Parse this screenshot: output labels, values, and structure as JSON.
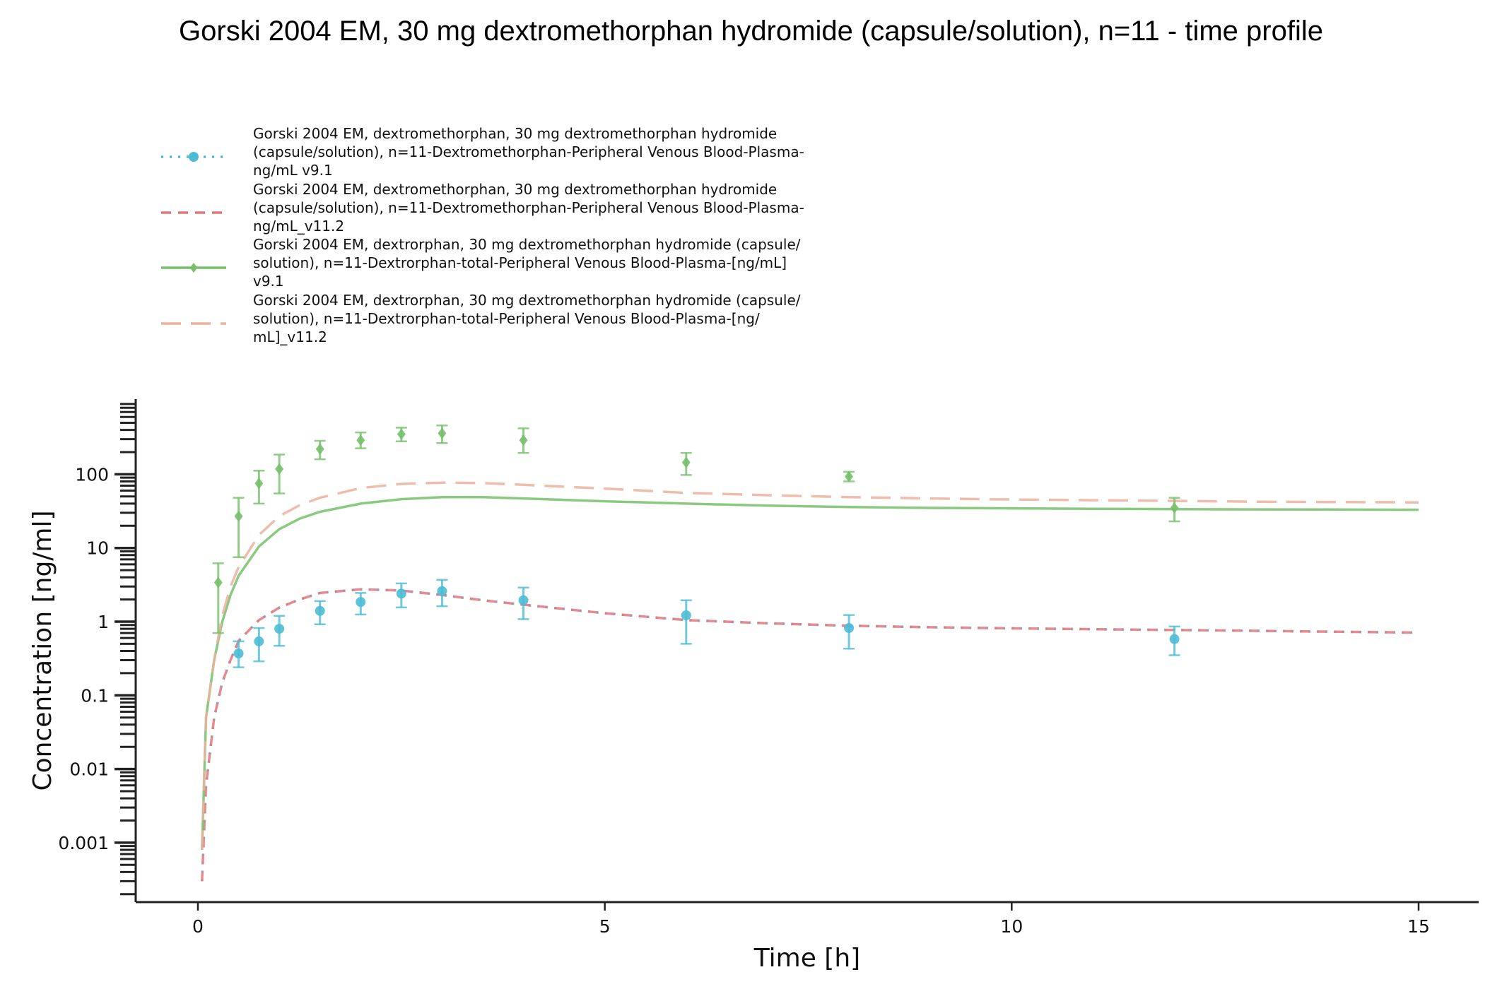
{
  "title": "Gorski 2004 EM, 30 mg dextromethorphan hydromide (capsule/solution), n=11 - time profile",
  "chart_data": {
    "type": "line",
    "title": "Gorski 2004 EM, 30 mg dextromethorphan hydromide (capsule/solution), n=11 - time profile",
    "xlabel": "Time [h]",
    "ylabel": "Concentration [ng/ml]",
    "xlim": [
      -0.75,
      15.75
    ],
    "ylim": [
      0.00015,
      900
    ],
    "yscale": "log",
    "xticks": [
      0,
      5,
      10,
      15
    ],
    "xtick_labels": [
      "0",
      "5",
      "10",
      "15"
    ],
    "yticks": [
      0.001,
      0.01,
      0.1,
      1,
      10,
      100
    ],
    "ytick_labels": [
      "0.001",
      "0.01",
      "0.1",
      "1",
      "10",
      "100"
    ],
    "grid": false,
    "legend_position": "top-left",
    "series": [
      {
        "name": "Gorski 2004 EM, dextromethorphan, 30 mg dextromethorphan hydromide (capsule/solution), n=11-Dextromethorphan-Peripheral Venous Blood-Plasma-ng/mL v9.1",
        "legend_lines": [
          "Gorski 2004 EM, dextromethorphan, 30 mg dextromethorphan hydromide",
          "(capsule/solution), n=11-Dextromethorphan-Peripheral Venous Blood-Plasma-",
          "ng/mL v9.1"
        ],
        "color": "#4dbbd5",
        "style": "dotted",
        "marker": "circle",
        "x": [
          0.05,
          0.1,
          0.2,
          0.3,
          0.4,
          0.5,
          0.75,
          1,
          1.25,
          1.5,
          2,
          2.5,
          3,
          3.5,
          4,
          5,
          6,
          7,
          8,
          9,
          10,
          11,
          12,
          13,
          14,
          15
        ],
        "y": [
          0.0003,
          0.006,
          0.05,
          0.15,
          0.3,
          0.55,
          1.05,
          1.55,
          2.0,
          2.45,
          2.75,
          2.65,
          2.3,
          1.95,
          1.7,
          1.3,
          1.05,
          0.95,
          0.88,
          0.84,
          0.81,
          0.79,
          0.77,
          0.75,
          0.73,
          0.71
        ],
        "obs_x": [
          0.5,
          0.75,
          1,
          1.5,
          2,
          2.5,
          3,
          4,
          6,
          8,
          12
        ],
        "obs_y": [
          0.37,
          0.54,
          0.8,
          1.4,
          1.85,
          2.4,
          2.6,
          1.95,
          1.22,
          0.82,
          0.58
        ],
        "obs_err_low": [
          0.24,
          0.29,
          0.47,
          0.92,
          1.25,
          1.56,
          1.62,
          1.08,
          0.5,
          0.43,
          0.35
        ],
        "obs_err_high": [
          0.54,
          0.82,
          1.2,
          1.9,
          2.45,
          3.3,
          3.7,
          2.9,
          1.95,
          1.23,
          0.86
        ]
      },
      {
        "name": "Gorski 2004 EM, dextromethorphan, 30 mg dextromethorphan hydromide (capsule/solution), n=11-Dextromethorphan-Peripheral Venous Blood-Plasma-ng/mL_v11.2",
        "legend_lines": [
          "Gorski 2004 EM, dextromethorphan, 30 mg dextromethorphan hydromide",
          "(capsule/solution), n=11-Dextromethorphan-Peripheral Venous Blood-Plasma-",
          "ng/mL_v11.2"
        ],
        "color": "#e4767b",
        "style": "dashed",
        "marker": "none",
        "x": [
          0.05,
          0.1,
          0.2,
          0.3,
          0.4,
          0.5,
          0.75,
          1,
          1.25,
          1.5,
          2,
          2.5,
          3,
          3.5,
          4,
          5,
          6,
          7,
          8,
          9,
          10,
          11,
          12,
          13,
          14,
          15
        ],
        "y": [
          0.0003,
          0.006,
          0.05,
          0.15,
          0.3,
          0.55,
          1.05,
          1.55,
          2.0,
          2.45,
          2.75,
          2.65,
          2.3,
          1.95,
          1.7,
          1.3,
          1.05,
          0.95,
          0.88,
          0.84,
          0.81,
          0.79,
          0.77,
          0.75,
          0.73,
          0.71
        ]
      },
      {
        "name": "Gorski 2004 EM, dextrorphan, 30 mg dextromethorphan hydromide (capsule/solution), n=11-Dextrorphan-total-Peripheral Venous Blood-Plasma-[ng/mL] v9.1",
        "legend_lines": [
          "Gorski 2004 EM, dextrorphan, 30 mg dextromethorphan hydromide (capsule/",
          "solution), n=11-Dextrorphan-total-Peripheral Venous Blood-Plasma-[ng/mL]",
          "v9.1"
        ],
        "color": "#76c06a",
        "style": "solid",
        "marker": "diamond",
        "x": [
          0.05,
          0.1,
          0.2,
          0.3,
          0.4,
          0.5,
          0.75,
          1,
          1.25,
          1.5,
          2,
          2.5,
          3,
          3.5,
          4,
          5,
          6,
          7,
          8,
          9,
          10,
          11,
          12,
          13,
          14,
          15
        ],
        "y": [
          0.0008,
          0.05,
          0.3,
          1.0,
          2.3,
          4.2,
          10.5,
          18,
          25,
          31,
          40,
          46,
          49,
          49,
          47,
          43,
          40,
          37.5,
          36,
          35,
          34.5,
          34,
          33.7,
          33.4,
          33.2,
          33
        ],
        "obs_x": [
          0.25,
          0.5,
          0.75,
          1,
          1.5,
          2,
          2.5,
          3,
          4,
          6,
          8,
          12
        ],
        "obs_y": [
          3.4,
          27,
          75,
          118,
          220,
          290,
          350,
          360,
          290,
          145,
          93,
          35
        ],
        "obs_err_low": [
          0.7,
          7.5,
          40,
          55,
          160,
          225,
          280,
          265,
          195,
          98,
          80,
          23
        ],
        "obs_err_high": [
          6.2,
          48,
          112,
          185,
          285,
          370,
          430,
          460,
          420,
          195,
          108,
          48
        ]
      },
      {
        "name": "Gorski 2004 EM, dextrorphan, 30 mg dextromethorphan hydromide (capsule/solution), n=11-Dextrorphan-total-Peripheral Venous Blood-Plasma-[ng/mL]_v11.2",
        "legend_lines": [
          "Gorski 2004 EM, dextrorphan, 30 mg dextromethorphan hydromide (capsule/",
          "solution), n=11-Dextrorphan-total-Peripheral Venous Blood-Plasma-[ng/",
          "mL]_v11.2"
        ],
        "color": "#ebb29e",
        "style": "longdash",
        "marker": "none",
        "x": [
          0.05,
          0.1,
          0.2,
          0.3,
          0.4,
          0.5,
          0.75,
          1,
          1.25,
          1.5,
          2,
          2.5,
          3,
          3.5,
          4,
          5,
          6,
          7,
          8,
          9,
          10,
          11,
          12,
          13,
          14,
          15
        ],
        "y": [
          0.0008,
          0.05,
          0.3,
          1.2,
          3,
          5.5,
          15,
          27,
          38,
          48,
          65,
          74,
          77,
          76,
          72,
          64,
          56,
          52,
          49,
          47,
          45.5,
          44.5,
          43.5,
          42.5,
          42,
          41.5
        ]
      }
    ]
  }
}
